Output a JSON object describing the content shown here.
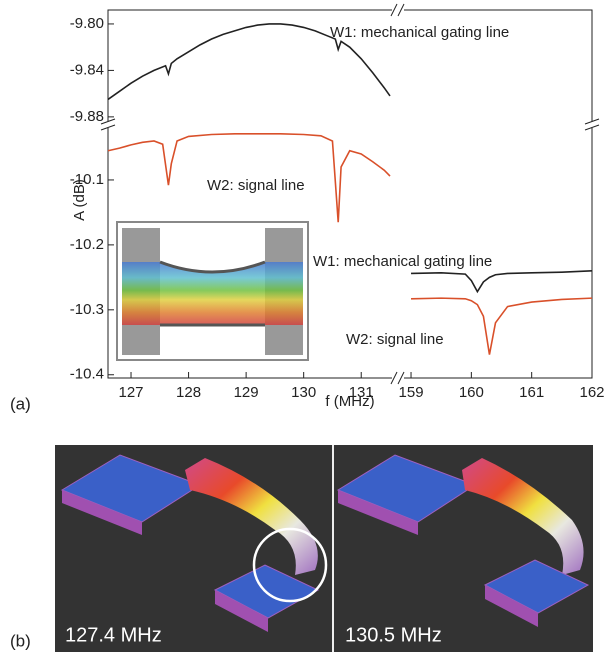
{
  "chart_data": [
    {
      "type": "line",
      "x": [
        126.6,
        126.8,
        127.0,
        127.2,
        127.4,
        127.6,
        127.65,
        127.7,
        127.8,
        128.0,
        128.2,
        128.4,
        128.6,
        128.8,
        129.0,
        129.2,
        129.4,
        129.6,
        129.8,
        130.0,
        130.2,
        130.4,
        130.55,
        130.6,
        130.65,
        130.8,
        131.0,
        131.2,
        131.4,
        131.5
      ],
      "xlim": [
        126.6,
        131.5
      ],
      "ylim": [
        -9.887,
        -9.788
      ],
      "yticks": [
        {
          "value": -9.8,
          "label": "-9.80"
        },
        -9.84,
        -9.88
      ],
      "series": [
        {
          "name": "W1: mechanical gating line",
          "color": "#222222",
          "values": [
            -9.865,
            -9.858,
            -9.851,
            -9.845,
            -9.84,
            -9.836,
            -9.843,
            -9.834,
            -9.83,
            -9.824,
            -9.818,
            -9.813,
            -9.809,
            -9.806,
            -9.803,
            -9.801,
            -9.8,
            -9.8,
            -9.801,
            -9.803,
            -9.806,
            -9.81,
            -9.813,
            -9.822,
            -9.815,
            -9.82,
            -9.83,
            -9.842,
            -9.855,
            -9.862
          ]
        }
      ]
    },
    {
      "type": "line",
      "x": [
        126.6,
        126.8,
        127.0,
        127.2,
        127.4,
        127.55,
        127.65,
        127.7,
        127.8,
        128.0,
        128.4,
        128.8,
        129.2,
        129.6,
        130.0,
        130.3,
        130.5,
        130.6,
        130.65,
        130.8,
        131.0,
        131.2,
        131.4,
        131.5
      ],
      "xlim": [
        126.6,
        131.5
      ],
      "ylim": [
        -10.405,
        -10.02
      ],
      "yticks": [
        -10.1,
        -10.2,
        -10.3,
        -10.4
      ],
      "xticks": [
        127,
        128,
        129,
        130,
        131
      ],
      "ylabel": "A (dB)",
      "xlabel": "f (MHz)",
      "series": [
        {
          "name": "W2: signal line",
          "color": "#d9502a",
          "values": [
            -10.055,
            -10.051,
            -10.046,
            -10.042,
            -10.04,
            -10.045,
            -10.108,
            -10.075,
            -10.04,
            -10.033,
            -10.03,
            -10.029,
            -10.029,
            -10.029,
            -10.03,
            -10.032,
            -10.04,
            -10.165,
            -10.08,
            -10.055,
            -10.06,
            -10.072,
            -10.085,
            -10.094
          ]
        }
      ]
    },
    {
      "type": "line",
      "x": [
        159.0,
        159.5,
        159.9,
        160.0,
        160.1,
        160.2,
        160.3,
        160.4,
        160.6,
        161.0,
        161.5,
        162.0
      ],
      "xlim": [
        158.9,
        162
      ],
      "ylim": [
        -10.405,
        -10.02
      ],
      "xticks": [
        159,
        160,
        161,
        162
      ],
      "series": [
        {
          "name": "W1: mechanical gating line",
          "color": "#222222",
          "values": [
            -10.244,
            -10.243,
            -10.245,
            -10.255,
            -10.272,
            -10.257,
            -10.25,
            -10.246,
            -10.244,
            -10.243,
            -10.242,
            -10.24
          ]
        },
        {
          "name": "W2: signal line",
          "color": "#d9502a",
          "values": [
            -10.283,
            -10.282,
            -10.283,
            -10.286,
            -10.292,
            -10.31,
            -10.369,
            -10.32,
            -10.295,
            -10.288,
            -10.284,
            -10.282
          ]
        }
      ]
    }
  ],
  "panel_labels": [
    "(a)",
    "(b)"
  ],
  "panel_b": {
    "captions": [
      "127.4 MHz",
      "130.5 MHz"
    ]
  }
}
